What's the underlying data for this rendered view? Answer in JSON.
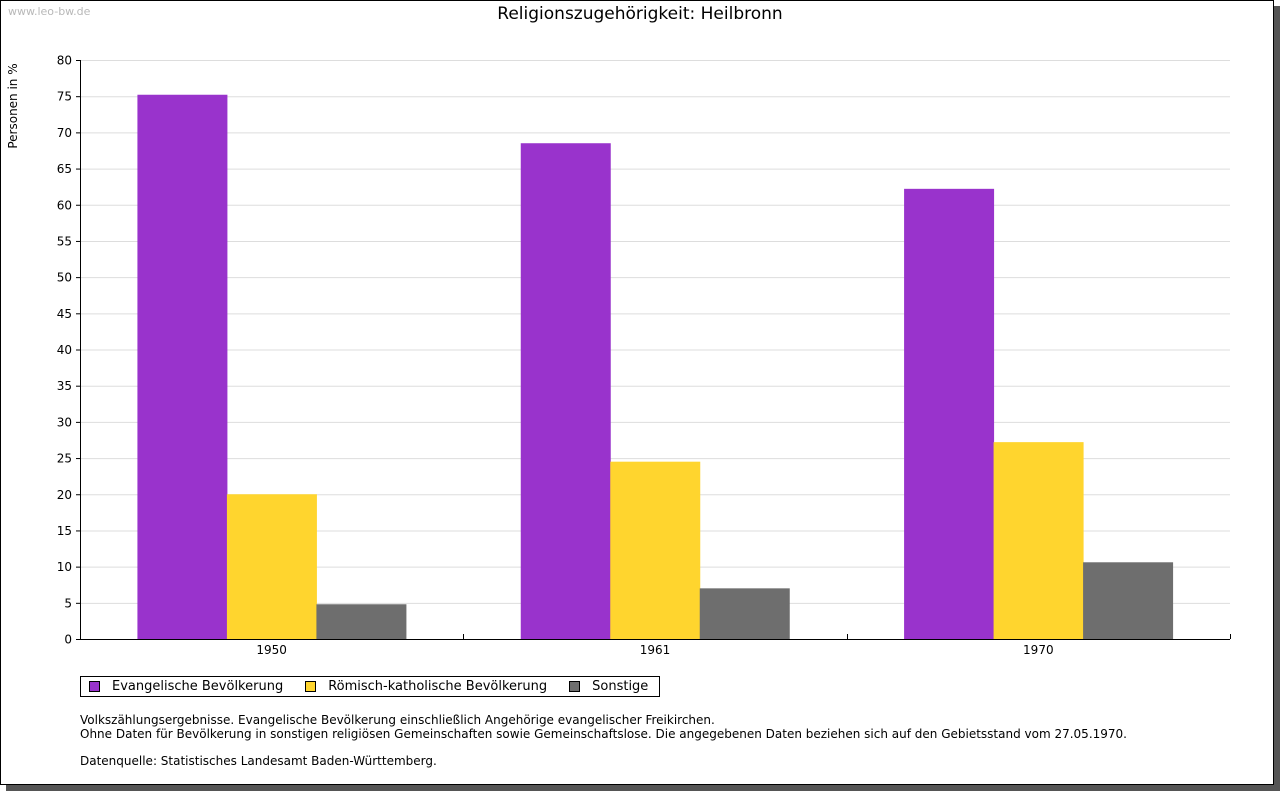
{
  "watermark": "www.leo-bw.de",
  "chart_data": {
    "type": "bar",
    "title": "Religionszugehörigkeit: Heilbronn",
    "xlabel": "",
    "ylabel": "Personen in %",
    "ylim": [
      0,
      80
    ],
    "yticks": [
      0,
      5,
      10,
      15,
      20,
      25,
      30,
      35,
      40,
      45,
      50,
      55,
      60,
      65,
      70,
      75,
      80
    ],
    "grid": true,
    "legend_position": "bottom-left",
    "categories": [
      "1950",
      "1961",
      "1970"
    ],
    "series": [
      {
        "name": "Evangelische Bevölkerung",
        "color": "#9933cc",
        "values": [
          75.2,
          68.5,
          62.2
        ]
      },
      {
        "name": "Römisch-katholische Bevölkerung",
        "color": "#ffd52e",
        "values": [
          20.0,
          24.5,
          27.2
        ]
      },
      {
        "name": "Sonstige",
        "color": "#6e6e6e",
        "values": [
          4.8,
          7.0,
          10.6
        ]
      }
    ]
  },
  "notes": {
    "line1": "Volkszählungsergebnisse. Evangelische Bevölkerung einschließlich Angehörige evangelischer Freikirchen.",
    "line2": "Ohne Daten für Bevölkerung in sonstigen religiösen Gemeinschaften sowie Gemeinschaftslose. Die angegebenen Daten beziehen sich auf den Gebietsstand vom 27.05.1970.",
    "source": "Datenquelle: Statistisches Landesamt Baden-Württemberg."
  }
}
